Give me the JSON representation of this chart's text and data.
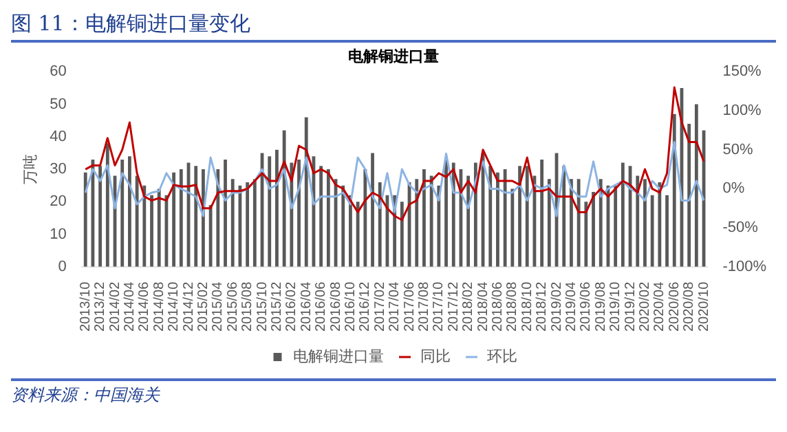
{
  "chart_data": {
    "type": "bar",
    "title": "图 11：电解铜进口量变化",
    "subtitle": "电解铜进口量",
    "ylabel": "万吨",
    "categories": [
      "2013/10",
      null,
      "2013/12",
      null,
      "2014/02",
      null,
      "2014/04",
      null,
      "2014/06",
      null,
      "2014/08",
      null,
      "2014/10",
      null,
      "2014/12",
      null,
      "2015/02",
      null,
      "2015/04",
      null,
      "2015/06",
      null,
      "2015/08",
      null,
      "2015/10",
      null,
      "2015/12",
      null,
      "2016/02",
      null,
      "2016/04",
      null,
      "2016/06",
      null,
      "2016/08",
      null,
      "2016/10",
      null,
      "2016/12",
      null,
      "2017/02",
      null,
      "2017/04",
      null,
      "2017/06",
      null,
      "2017/08",
      null,
      "2017/10",
      null,
      "2017/12",
      null,
      "2018/02",
      null,
      "2018/04",
      null,
      "2018/06",
      null,
      "2018/08",
      null,
      "2018/10",
      null,
      "2018/12",
      null,
      "2019/02",
      null,
      "2019/04",
      null,
      "2019/06",
      null,
      "2019/08",
      null,
      "2019/10",
      null,
      "2019/12",
      null,
      "2020/02",
      null,
      "2020/04",
      null,
      "2020/06",
      null,
      "2020/08",
      null,
      "2020/10"
    ],
    "series": [
      {
        "name": "电解铜进口量",
        "color": "#595959",
        "values": [
          29,
          33,
          31,
          38,
          28,
          33,
          34,
          28,
          25,
          22,
          24,
          22,
          29,
          30,
          32,
          31,
          30,
          19,
          30,
          33,
          27,
          25,
          26,
          27,
          35,
          34,
          36,
          42,
          32,
          33,
          46,
          34,
          31,
          30,
          27,
          25,
          22,
          20,
          30,
          35,
          26,
          22,
          22,
          20,
          26,
          27,
          30,
          28,
          25,
          33,
          32,
          30,
          28,
          32,
          35,
          31,
          29,
          30,
          24,
          31,
          31,
          28,
          33,
          27,
          35,
          31,
          27,
          27,
          20,
          23,
          27,
          25,
          25,
          32,
          31,
          28,
          27,
          22,
          26,
          22,
          47,
          55,
          44,
          50,
          42
        ]
      },
      {
        "name": "同比",
        "type": "line",
        "axis": "y2",
        "color": "#c00000",
        "values": [
          25,
          30,
          30,
          65,
          30,
          50,
          85,
          20,
          -10,
          -15,
          -12,
          -15,
          5,
          3,
          3,
          5,
          -25,
          -25,
          -5,
          -3,
          -3,
          -3,
          0,
          10,
          20,
          10,
          10,
          35,
          10,
          55,
          50,
          20,
          25,
          20,
          5,
          0,
          -15,
          -30,
          -15,
          -5,
          -10,
          -25,
          -35,
          -40,
          -20,
          -15,
          10,
          10,
          20,
          15,
          25,
          -5,
          10,
          -5,
          50,
          30,
          10,
          10,
          10,
          5,
          40,
          -3,
          -3,
          0,
          -10,
          -10,
          -10,
          -30,
          -30,
          -10,
          0,
          -10,
          0,
          10,
          5,
          -5,
          25,
          0,
          -5,
          20,
          130,
          85,
          60,
          60,
          35
        ]
      },
      {
        "name": "环比",
        "type": "line",
        "axis": "y2",
        "color": "#8db4e2",
        "values": [
          -5,
          25,
          10,
          30,
          -25,
          20,
          5,
          -20,
          -10,
          -5,
          -3,
          20,
          5,
          0,
          -5,
          -10,
          -35,
          40,
          5,
          -15,
          -5,
          -5,
          0,
          10,
          25,
          0,
          5,
          25,
          -25,
          0,
          40,
          -20,
          -10,
          -10,
          -10,
          -5,
          -20,
          40,
          25,
          -10,
          -25,
          20,
          -30,
          25,
          5,
          -5,
          0,
          5,
          -15,
          45,
          -5,
          -5,
          -25,
          10,
          35,
          0,
          0,
          -5,
          -5,
          5,
          -15,
          5,
          0,
          5,
          -35,
          30,
          0,
          -10,
          -10,
          35,
          -10,
          0,
          5,
          10,
          0,
          -5,
          -15,
          10,
          0,
          5,
          60,
          -15,
          -15,
          10,
          -15
        ]
      }
    ],
    "ylim": [
      0,
      60
    ],
    "yticks": [
      0,
      10,
      20,
      30,
      40,
      50,
      60
    ],
    "y2lim": [
      -100,
      150
    ],
    "y2ticks": [
      {
        "value": -100,
        "label": "-100%"
      },
      {
        "value": -50,
        "label": "-50%"
      },
      {
        "value": 0,
        "label": "0%"
      },
      {
        "value": 50,
        "label": "50%"
      },
      {
        "value": 100,
        "label": "100%"
      },
      {
        "value": 150,
        "label": "150%"
      }
    ],
    "legend": "bottom",
    "annotations": [
      "资料来源：中国海关"
    ]
  }
}
